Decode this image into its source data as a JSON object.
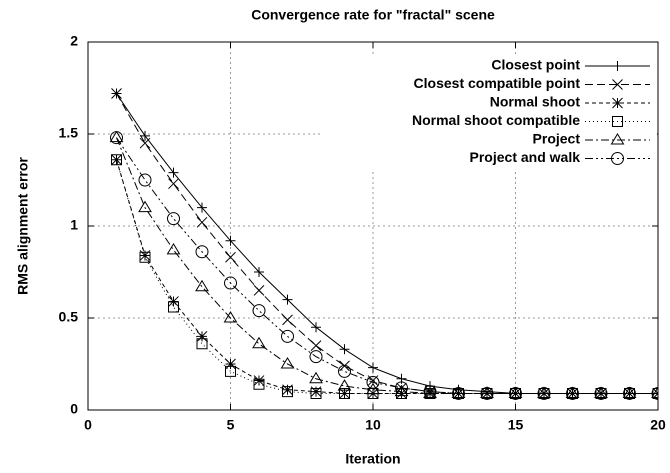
{
  "chart_data": {
    "type": "line",
    "title": "Convergence rate for \"fractal\" scene",
    "x_label": "Iteration",
    "y_label": "RMS alignment error",
    "x": [
      1,
      2,
      3,
      4,
      5,
      6,
      7,
      8,
      9,
      10,
      11,
      12,
      13,
      14,
      15,
      16,
      17,
      18,
      19,
      20
    ],
    "series": [
      {
        "name": "Closest point",
        "color": "#000000",
        "dash": "",
        "marker": "plus",
        "values": [
          1.72,
          1.49,
          1.29,
          1.1,
          0.92,
          0.75,
          0.6,
          0.45,
          0.33,
          0.23,
          0.17,
          0.13,
          0.11,
          0.1,
          0.09,
          0.09,
          0.09,
          0.09,
          0.09,
          0.09
        ]
      },
      {
        "name": "Closest compatible point",
        "color": "#000000",
        "dash": "8 4",
        "marker": "cross",
        "values": [
          1.72,
          1.45,
          1.23,
          1.02,
          0.83,
          0.65,
          0.49,
          0.35,
          0.24,
          0.16,
          0.12,
          0.1,
          0.09,
          0.09,
          0.09,
          0.09,
          0.09,
          0.09,
          0.09,
          0.09
        ]
      },
      {
        "name": "Normal shoot",
        "color": "#000000",
        "dash": "4 3",
        "marker": "star",
        "values": [
          1.36,
          0.84,
          0.59,
          0.4,
          0.25,
          0.16,
          0.11,
          0.1,
          0.09,
          0.09,
          0.09,
          0.09,
          0.09,
          0.09,
          0.09,
          0.09,
          0.09,
          0.09,
          0.09,
          0.09
        ]
      },
      {
        "name": "Normal shoot compatible",
        "color": "#000000",
        "dash": "1 3",
        "marker": "square",
        "values": [
          1.36,
          0.83,
          0.56,
          0.36,
          0.21,
          0.14,
          0.1,
          0.09,
          0.09,
          0.09,
          0.09,
          0.09,
          0.09,
          0.09,
          0.09,
          0.09,
          0.09,
          0.09,
          0.09,
          0.09
        ]
      },
      {
        "name": "Project",
        "color": "#000000",
        "dash": "8 3 2 3",
        "marker": "triangle",
        "values": [
          1.48,
          1.1,
          0.87,
          0.67,
          0.5,
          0.36,
          0.25,
          0.17,
          0.13,
          0.11,
          0.1,
          0.09,
          0.09,
          0.09,
          0.09,
          0.09,
          0.09,
          0.09,
          0.09,
          0.09
        ]
      },
      {
        "name": "Project and walk",
        "color": "#000000",
        "dash": "8 3 2 3 2 3",
        "marker": "circle",
        "values": [
          1.48,
          1.25,
          1.04,
          0.86,
          0.69,
          0.54,
          0.4,
          0.29,
          0.21,
          0.15,
          0.12,
          0.1,
          0.09,
          0.09,
          0.09,
          0.09,
          0.09,
          0.09,
          0.09,
          0.09
        ]
      }
    ],
    "xlim": [
      0,
      20
    ],
    "xticks": [
      0,
      5,
      10,
      15,
      20
    ],
    "ylim": [
      0,
      2
    ],
    "yticks": [
      0,
      0.5,
      1,
      1.5,
      2
    ],
    "grid": true,
    "legend": "top-right"
  }
}
